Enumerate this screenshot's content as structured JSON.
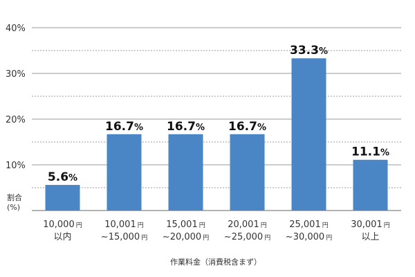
{
  "chart_data": {
    "type": "bar",
    "categories": [
      {
        "line1": "10,000",
        "line1_unit": "円",
        "line2": "以内",
        "line2_unit": ""
      },
      {
        "line1": "10,001",
        "line1_unit": "円",
        "line2": "~15,000",
        "line2_unit": "円"
      },
      {
        "line1": "15,001",
        "line1_unit": "円",
        "line2": "~20,000",
        "line2_unit": "円"
      },
      {
        "line1": "20,001",
        "line1_unit": "円",
        "line2": "~25,000",
        "line2_unit": "円"
      },
      {
        "line1": "25,001",
        "line1_unit": "円",
        "line2": "~30,000",
        "line2_unit": "円"
      },
      {
        "line1": "30,001",
        "line1_unit": "円",
        "line2": "以上",
        "line2_unit": ""
      }
    ],
    "values": [
      5.6,
      16.7,
      16.7,
      16.7,
      33.3,
      11.1
    ],
    "value_labels": [
      "5.6",
      "16.7",
      "16.7",
      "16.7",
      "33.3",
      "11.1"
    ],
    "value_suffix": "%",
    "ylim": [
      0,
      40
    ],
    "yticks": [
      10,
      20,
      30,
      40
    ],
    "ytick_labels": [
      "10%",
      "20%",
      "30%",
      "40%"
    ],
    "minor_grid": [
      5,
      15,
      25,
      35
    ],
    "ylabel_line1": "割合",
    "ylabel_line2": "(%)",
    "xlabel": "作業料金（消費税含まず）",
    "bar_color": "#4a86c5",
    "grid": true
  }
}
